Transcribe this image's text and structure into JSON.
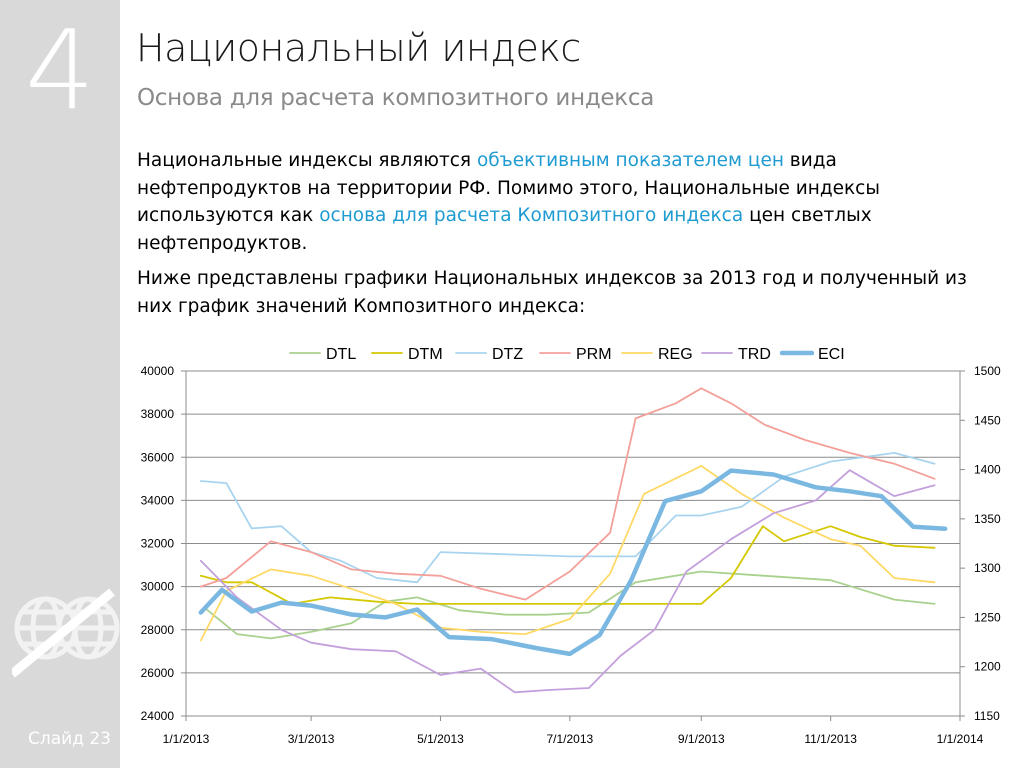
{
  "slide": {
    "number": "4",
    "title": "Национальный индекс",
    "subtitle": "Основа для расчета композитного индекса",
    "label": "Слайд 23"
  },
  "body": {
    "p1": [
      {
        "t": "Национальные индексы являются ",
        "h": false
      },
      {
        "t": "объективным показателем цен",
        "h": true
      },
      {
        "t": " вида нефтепродуктов на территории РФ. Помимо этого, Национальные индексы используются как ",
        "h": false
      },
      {
        "t": "основа для расчета Композитного индекса",
        "h": true
      },
      {
        "t": " цен светлых нефтепродуктов.",
        "h": false
      }
    ],
    "p2": "Ниже представлены графики Национальных индексов за 2013 год и полученный из них график значений Композитного индекса:"
  },
  "colors": {
    "sidebar": "#d9d9d9",
    "highlight": "#1f9bd1",
    "DTL": "#a9d18e",
    "DTM": "#d4c800",
    "DTZ": "#a9d4ef",
    "PRM": "#f4a09a",
    "REG": "#ffd966",
    "TRD": "#c3a0dc",
    "ECI": "#7ab8e2"
  },
  "chart_data": {
    "type": "line",
    "x_ticks": [
      "1/1/2013",
      "3/1/2013",
      "5/1/2013",
      "7/1/2013",
      "9/1/2013",
      "11/1/2013",
      "1/1/2014"
    ],
    "xlim": [
      "2013-01-01",
      "2014-01-01"
    ],
    "y_left": {
      "min": 24000,
      "max": 40000,
      "ticks": [
        "24000",
        "26000",
        "28000",
        "30000",
        "32000",
        "34000",
        "36000",
        "38000",
        "40000"
      ]
    },
    "y_right": {
      "min": 1150,
      "max": 1500,
      "ticks": [
        "1150",
        "1200",
        "1250",
        "1300",
        "1350",
        "1400",
        "1450",
        "1500"
      ]
    },
    "grid": true,
    "legend": "top",
    "series": [
      {
        "name": "DTL",
        "axis": "left",
        "color": "#a9d18e",
        "width": 1.8,
        "x": [
          "2013-01-10",
          "2013-01-25",
          "2013-02-10",
          "2013-03-01",
          "2013-03-20",
          "2013-04-05",
          "2013-04-20",
          "2013-05-10",
          "2013-06-01",
          "2013-06-20",
          "2013-07-10",
          "2013-08-01",
          "2013-09-01",
          "2013-10-01",
          "2013-11-01",
          "2013-12-01",
          "2013-12-20"
        ],
        "y": [
          29000,
          27800,
          27600,
          27900,
          28300,
          29300,
          29500,
          28900,
          28700,
          28700,
          28800,
          30200,
          30700,
          30500,
          30300,
          29400,
          29200
        ]
      },
      {
        "name": "DTM",
        "axis": "left",
        "color": "#d4c800",
        "width": 1.8,
        "x": [
          "2013-01-08",
          "2013-01-20",
          "2013-02-01",
          "2013-02-20",
          "2013-03-10",
          "2013-04-01",
          "2013-04-20",
          "2013-05-10",
          "2013-06-01",
          "2013-07-01",
          "2013-08-01",
          "2013-09-01",
          "2013-09-15",
          "2013-09-30",
          "2013-10-10",
          "2013-11-01",
          "2013-11-15",
          "2013-12-01",
          "2013-12-20"
        ],
        "y": [
          30500,
          30200,
          30200,
          29200,
          29500,
          29300,
          29200,
          29200,
          29200,
          29200,
          29200,
          29200,
          30400,
          32800,
          32100,
          32800,
          32300,
          31900,
          31800
        ]
      },
      {
        "name": "DTZ",
        "axis": "left",
        "color": "#a9d4ef",
        "width": 1.8,
        "x": [
          "2013-01-08",
          "2013-01-20",
          "2013-02-01",
          "2013-02-15",
          "2013-03-01",
          "2013-03-15",
          "2013-04-01",
          "2013-04-20",
          "2013-05-01",
          "2013-06-01",
          "2013-07-01",
          "2013-08-01",
          "2013-08-20",
          "2013-09-01",
          "2013-09-20",
          "2013-10-10",
          "2013-11-01",
          "2013-12-01",
          "2013-12-20"
        ],
        "y": [
          34900,
          34800,
          32700,
          32800,
          31600,
          31200,
          30400,
          30200,
          31600,
          31500,
          31400,
          31400,
          33300,
          33300,
          33700,
          35100,
          35800,
          36200,
          35700
        ]
      },
      {
        "name": "PRM",
        "axis": "left",
        "color": "#f4a09a",
        "width": 1.8,
        "x": [
          "2013-01-08",
          "2013-01-20",
          "2013-02-10",
          "2013-03-01",
          "2013-03-20",
          "2013-04-10",
          "2013-05-01",
          "2013-05-20",
          "2013-06-10",
          "2013-07-01",
          "2013-07-20",
          "2013-08-01",
          "2013-08-20",
          "2013-09-01",
          "2013-09-15",
          "2013-10-01",
          "2013-10-20",
          "2013-11-10",
          "2013-12-01",
          "2013-12-20"
        ],
        "y": [
          30000,
          30400,
          32100,
          31600,
          30800,
          30600,
          30500,
          29900,
          29400,
          30700,
          32500,
          37800,
          38500,
          39200,
          38500,
          37500,
          36800,
          36200,
          35700,
          35000
        ]
      },
      {
        "name": "REG",
        "axis": "left",
        "color": "#ffd966",
        "width": 1.8,
        "x": [
          "2013-01-08",
          "2013-01-20",
          "2013-02-10",
          "2013-03-01",
          "2013-03-20",
          "2013-04-10",
          "2013-05-01",
          "2013-05-20",
          "2013-06-10",
          "2013-07-01",
          "2013-07-20",
          "2013-08-05",
          "2013-09-01",
          "2013-09-20",
          "2013-10-10",
          "2013-11-01",
          "2013-11-15",
          "2013-12-01",
          "2013-12-20"
        ],
        "y": [
          27500,
          29800,
          30800,
          30500,
          29900,
          29200,
          28100,
          27900,
          27800,
          28500,
          30600,
          34300,
          35600,
          34300,
          33200,
          32200,
          31900,
          30400,
          30200
        ]
      },
      {
        "name": "TRD",
        "axis": "left",
        "color": "#c3a0dc",
        "width": 1.8,
        "x": [
          "2013-01-08",
          "2013-01-25",
          "2013-02-15",
          "2013-03-01",
          "2013-03-20",
          "2013-04-10",
          "2013-05-01",
          "2013-05-20",
          "2013-06-05",
          "2013-06-20",
          "2013-07-10",
          "2013-07-25",
          "2013-08-10",
          "2013-08-25",
          "2013-09-15",
          "2013-10-05",
          "2013-10-25",
          "2013-11-10",
          "2013-12-01",
          "2013-12-20"
        ],
        "y": [
          31200,
          29500,
          28000,
          27400,
          27100,
          27000,
          25900,
          26200,
          25100,
          25200,
          25300,
          26800,
          28000,
          30700,
          32200,
          33400,
          34000,
          35400,
          34200,
          34700
        ]
      },
      {
        "name": "ECI",
        "axis": "right",
        "color": "#7ab8e2",
        "width": 4.5,
        "x": [
          "2013-01-08",
          "2013-01-18",
          "2013-02-01",
          "2013-02-15",
          "2013-03-01",
          "2013-03-20",
          "2013-04-05",
          "2013-04-20",
          "2013-05-05",
          "2013-05-25",
          "2013-06-15",
          "2013-07-01",
          "2013-07-15",
          "2013-07-30",
          "2013-08-15",
          "2013-09-01",
          "2013-09-15",
          "2013-10-05",
          "2013-10-25",
          "2013-11-10",
          "2013-11-25",
          "2013-12-10",
          "2013-12-25"
        ],
        "y": [
          1255,
          1278,
          1256,
          1265,
          1262,
          1253,
          1250,
          1258,
          1230,
          1228,
          1219,
          1213,
          1232,
          1288,
          1368,
          1378,
          1399,
          1395,
          1382,
          1378,
          1373,
          1342,
          1340
        ]
      }
    ]
  }
}
